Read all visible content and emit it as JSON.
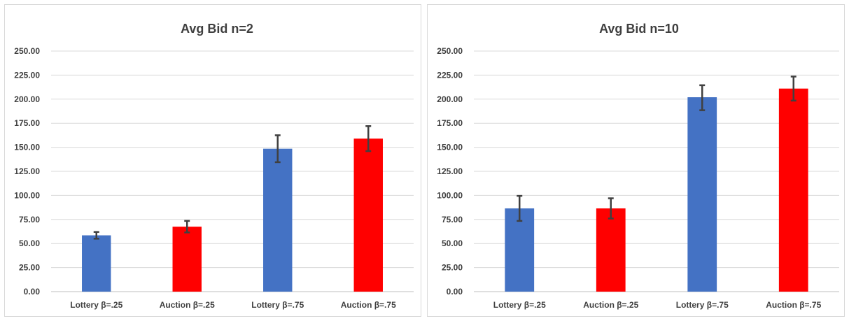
{
  "chart_data": [
    {
      "type": "bar",
      "title": "Avg Bid  n=2",
      "categories": [
        "Lottery β=.25",
        "Auction β=.25",
        "Lottery β=.75",
        "Auction β=.75"
      ],
      "values": [
        58.5,
        67.5,
        148.5,
        159.0
      ],
      "error_low": [
        55.0,
        61.5,
        134.5,
        146.0
      ],
      "error_high": [
        62.0,
        73.5,
        162.5,
        172.0
      ],
      "colors": [
        "#4472C4",
        "#FF0000",
        "#4472C4",
        "#FF0000"
      ],
      "ylim": [
        0,
        250
      ],
      "yticks": [
        "0.00",
        "25.00",
        "50.00",
        "75.00",
        "100.00",
        "125.00",
        "150.00",
        "175.00",
        "200.00",
        "225.00",
        "250.00"
      ],
      "grid": true
    },
    {
      "type": "bar",
      "title": "Avg Bid n=10",
      "categories": [
        "Lottery β=.25",
        "Auction β=.25",
        "Lottery β=.75",
        "Auction β=.75"
      ],
      "values": [
        86.5,
        86.5,
        202.0,
        211.0
      ],
      "error_low": [
        73.5,
        76.0,
        188.5,
        198.5
      ],
      "error_high": [
        99.5,
        97.0,
        214.5,
        223.5
      ],
      "colors": [
        "#4472C4",
        "#FF0000",
        "#4472C4",
        "#FF0000"
      ],
      "ylim": [
        0,
        250
      ],
      "yticks": [
        "0.00",
        "25.00",
        "50.00",
        "75.00",
        "100.00",
        "125.00",
        "150.00",
        "175.00",
        "200.00",
        "225.00",
        "250.00"
      ],
      "grid": true
    }
  ]
}
